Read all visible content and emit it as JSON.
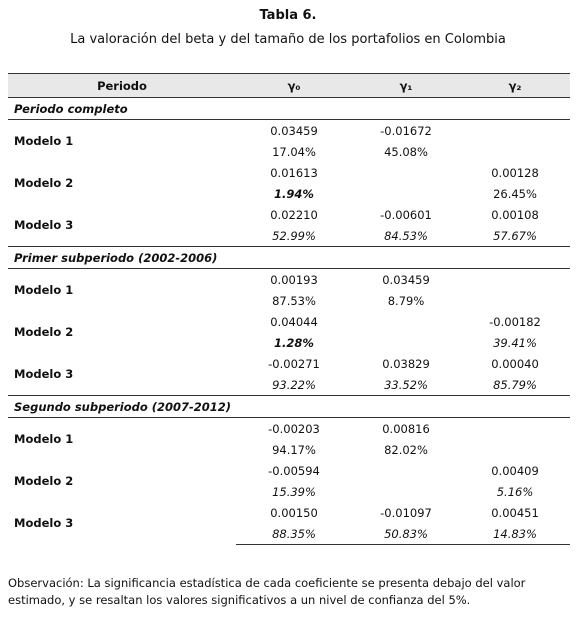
{
  "header": {
    "title": "Tabla 6.",
    "subtitle": "La valoración del beta y del tamaño de los portafolios en Colombia"
  },
  "table": {
    "columns": [
      "Periodo",
      "γ₀",
      "γ₁",
      "γ₂"
    ],
    "sections": [
      {
        "title": "Periodo completo",
        "models": [
          {
            "name": "Modelo 1",
            "coef": [
              "0.03459",
              "-0.01672",
              null
            ],
            "pval": [
              "17.04%",
              "45.08%",
              null
            ]
          },
          {
            "name": "Modelo 2",
            "coef": [
              "0.01613",
              null,
              "0.00128"
            ],
            "pval": [
              "1.94%",
              null,
              "26.45%"
            ]
          },
          {
            "name": "Modelo 3",
            "coef": [
              "0.02210",
              "-0.00601",
              "0.00108"
            ],
            "pval": [
              "52.99%",
              "84.53%",
              "57.67%"
            ]
          }
        ]
      },
      {
        "title": "Primer subperiodo (2002-2006)",
        "models": [
          {
            "name": "Modelo 1",
            "coef": [
              "0.00193",
              "0.03459",
              null
            ],
            "pval": [
              "87.53%",
              "8.79%",
              null
            ]
          },
          {
            "name": "Modelo 2",
            "coef": [
              "0.04044",
              null,
              "-0.00182"
            ],
            "pval": [
              "1.28%",
              null,
              "39.41%"
            ]
          },
          {
            "name": "Modelo 3",
            "coef": [
              "-0.00271",
              "0.03829",
              "0.00040"
            ],
            "pval": [
              "93.22%",
              "33.52%",
              "85.79%"
            ]
          }
        ]
      },
      {
        "title": "Segundo subperiodo (2007-2012)",
        "models": [
          {
            "name": "Modelo 1",
            "coef": [
              "-0.00203",
              "0.00816",
              null
            ],
            "pval": [
              "94.17%",
              "82.02%",
              null
            ]
          },
          {
            "name": "Modelo 2",
            "coef": [
              "-0.00594",
              null,
              "0.00409"
            ],
            "pval": [
              "15.39%",
              null,
              "5.16%"
            ]
          },
          {
            "name": "Modelo 3",
            "coef": [
              "0.00150",
              "-0.01097",
              "0.00451"
            ],
            "pval": [
              "88.35%",
              "50.83%",
              "14.83%"
            ]
          }
        ]
      }
    ]
  },
  "note": "Observación: La significancia estadística de cada coeficiente  se presenta debajo del valor estimado, y se resaltan los valores significativos a un nivel de confianza del 5%."
}
